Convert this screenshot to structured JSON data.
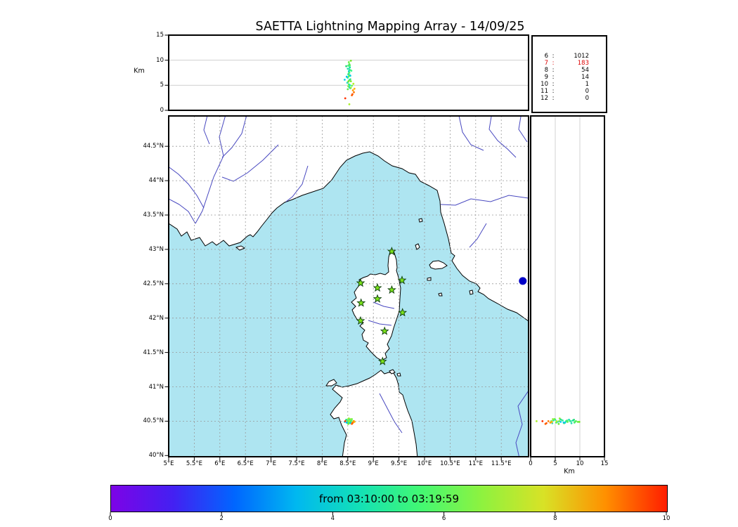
{
  "title": "SAETTA Lightning Mapping Array - 14/09/25",
  "colors": {
    "sea": "#aee5f1",
    "land": "#ffffff",
    "coast": "#000000",
    "river": "#4848c0",
    "grid": "#999999",
    "panel_grid": "#c8c8c8",
    "station_fill": "#7de31c",
    "station_edge": "#0b3d0b"
  },
  "top_panel": {
    "ylabel": "Km",
    "yticks": [
      "15",
      "10",
      "5",
      "0"
    ]
  },
  "station_stats": {
    "separator": ":",
    "rows": [
      {
        "id": "6",
        "count": "1012",
        "color": "#000000"
      },
      {
        "id": "7",
        "count": "183",
        "color": "#dd0000"
      },
      {
        "id": "8",
        "count": "54",
        "color": "#000000"
      },
      {
        "id": "9",
        "count": "14",
        "color": "#000000"
      },
      {
        "id": "10",
        "count": "1",
        "color": "#000000"
      },
      {
        "id": "11",
        "count": "0",
        "color": "#000000"
      },
      {
        "id": "12",
        "count": "0",
        "color": "#000000"
      }
    ]
  },
  "map_panel": {
    "lat_ticks": [
      "44.5°N",
      "44°N",
      "43.5°N",
      "43°N",
      "42.5°N",
      "42°N",
      "41.5°N",
      "41°N",
      "40.5°N",
      "40°N"
    ],
    "lon_ticks": [
      "5°E",
      "5.5°E",
      "6°E",
      "6.5°E",
      "7°E",
      "7.5°E",
      "8°E",
      "8.5°E",
      "9°E",
      "9.5°E",
      "10°E",
      "10.5°E",
      "11°E",
      "11.5°E"
    ]
  },
  "right_panel": {
    "xlabel": "Km",
    "xticks": [
      "0",
      "5",
      "10",
      "15"
    ]
  },
  "colorbar": {
    "label": "from 03:10:00 to 03:19:59",
    "ticks": [
      "0",
      "2",
      "4",
      "6",
      "8",
      "10"
    ],
    "gradient": [
      "#7d03e6",
      "#4420f2",
      "#0066ff",
      "#00b8f0",
      "#12e0b8",
      "#42f873",
      "#8ef23f",
      "#d8e226",
      "#ff9000",
      "#ff1e00"
    ]
  },
  "chart_data": {
    "type": "scatter",
    "title": "SAETTA Lightning Mapping Array - 14/09/25",
    "date": "14/09/25",
    "time_window": {
      "start": "03:10:00",
      "end": "03:19:59"
    },
    "colorbar_scale": {
      "units": "minutes",
      "min": 0,
      "max": 10,
      "ticks": [
        0,
        2,
        4,
        6,
        8,
        10
      ]
    },
    "altitude_axis_km": {
      "min": 0,
      "max": 15,
      "ticks": [
        0,
        5,
        10,
        15
      ]
    },
    "map_extent": {
      "lon_min_e": 5.0,
      "lon_max_e": 12.03,
      "lat_min_n": 39.98,
      "lat_max_n": 44.94
    },
    "sources_per_station_count": {
      "6": 1012,
      "7": 183,
      "8": 54,
      "9": 14,
      "10": 1,
      "11": 0,
      "12": 0
    },
    "lma_stations_lonlat": [
      [
        9.36,
        42.97
      ],
      [
        8.75,
        42.51
      ],
      [
        9.08,
        42.44
      ],
      [
        9.36,
        42.41
      ],
      [
        9.56,
        42.55
      ],
      [
        8.76,
        42.22
      ],
      [
        9.08,
        42.28
      ],
      [
        8.75,
        41.96
      ],
      [
        9.57,
        42.08
      ],
      [
        9.22,
        41.81
      ],
      [
        9.18,
        41.37
      ]
    ],
    "flash_cluster": {
      "center_lon_e": 8.53,
      "center_lat_n": 40.5,
      "alt_range_km": [
        1.2,
        9.9
      ]
    },
    "flash_points_lon_lat_altkm_color": [
      [
        8.52,
        40.49,
        9.6,
        "#64f03c"
      ],
      [
        8.53,
        40.5,
        9.2,
        "#50e650"
      ],
      [
        8.51,
        40.48,
        8.9,
        "#3cf078"
      ],
      [
        8.54,
        40.51,
        8.6,
        "#00e696"
      ],
      [
        8.5,
        40.47,
        8.3,
        "#28dcb4"
      ],
      [
        8.55,
        40.5,
        8.0,
        "#46fa64"
      ],
      [
        8.52,
        40.52,
        7.8,
        "#00d2c8"
      ],
      [
        8.53,
        40.49,
        7.5,
        "#5af046"
      ],
      [
        8.51,
        40.5,
        7.2,
        "#32e68c"
      ],
      [
        8.54,
        40.48,
        7.0,
        "#00c8f0"
      ],
      [
        8.52,
        40.47,
        6.8,
        "#64fa32"
      ],
      [
        8.5,
        40.51,
        6.5,
        "#28f0a0"
      ],
      [
        8.55,
        40.52,
        6.2,
        "#46e678"
      ],
      [
        8.53,
        40.53,
        6.0,
        "#00dcb4"
      ],
      [
        8.56,
        40.5,
        5.8,
        "#78f028"
      ],
      [
        8.49,
        40.49,
        5.5,
        "#32d2dc"
      ],
      [
        8.52,
        40.48,
        5.2,
        "#50fa50"
      ],
      [
        8.54,
        40.52,
        5.0,
        "#00e6c8"
      ],
      [
        8.51,
        40.53,
        4.8,
        "#8cf046"
      ],
      [
        8.53,
        40.51,
        4.6,
        "#28e696"
      ],
      [
        8.55,
        40.47,
        4.4,
        "#46d2b4"
      ],
      [
        8.5,
        40.5,
        4.2,
        "#64e650"
      ],
      [
        8.52,
        40.54,
        5.9,
        "#96f032"
      ],
      [
        8.48,
        40.48,
        6.7,
        "#00bef0"
      ],
      [
        8.57,
        40.51,
        7.9,
        "#3cfa8c"
      ],
      [
        8.47,
        40.52,
        8.8,
        "#28dc78"
      ],
      [
        8.56,
        40.49,
        9.9,
        "#78e628"
      ],
      [
        8.61,
        40.5,
        5.3,
        "#b4f028"
      ],
      [
        8.44,
        40.49,
        6.1,
        "#00d2f0"
      ],
      [
        8.58,
        40.53,
        4.9,
        "#64fa46"
      ],
      [
        8.54,
        40.49,
        9.0,
        "#50f064"
      ],
      [
        8.53,
        40.5,
        8.2,
        "#28e6a0"
      ],
      [
        8.52,
        40.51,
        7.4,
        "#46f078"
      ],
      [
        8.55,
        40.48,
        6.9,
        "#00d2dc"
      ],
      [
        8.51,
        40.46,
        5.7,
        "#6ee63c"
      ],
      [
        8.56,
        40.53,
        4.5,
        "#96ee3e"
      ],
      [
        8.6,
        40.48,
        4.0,
        "#ff9600"
      ],
      [
        8.62,
        40.5,
        3.6,
        "#ff7800"
      ],
      [
        8.59,
        40.47,
        3.2,
        "#ff5000"
      ],
      [
        8.63,
        40.49,
        4.3,
        "#ffb400"
      ],
      [
        8.45,
        40.5,
        2.4,
        "#ff3200"
      ],
      [
        8.58,
        40.46,
        3.0,
        "#ff6400"
      ],
      [
        8.53,
        40.5,
        1.2,
        "#aaf028"
      ]
    ],
    "isolated_source": {
      "lon": 11.92,
      "lat": 42.54,
      "color": "#0000c8"
    }
  }
}
